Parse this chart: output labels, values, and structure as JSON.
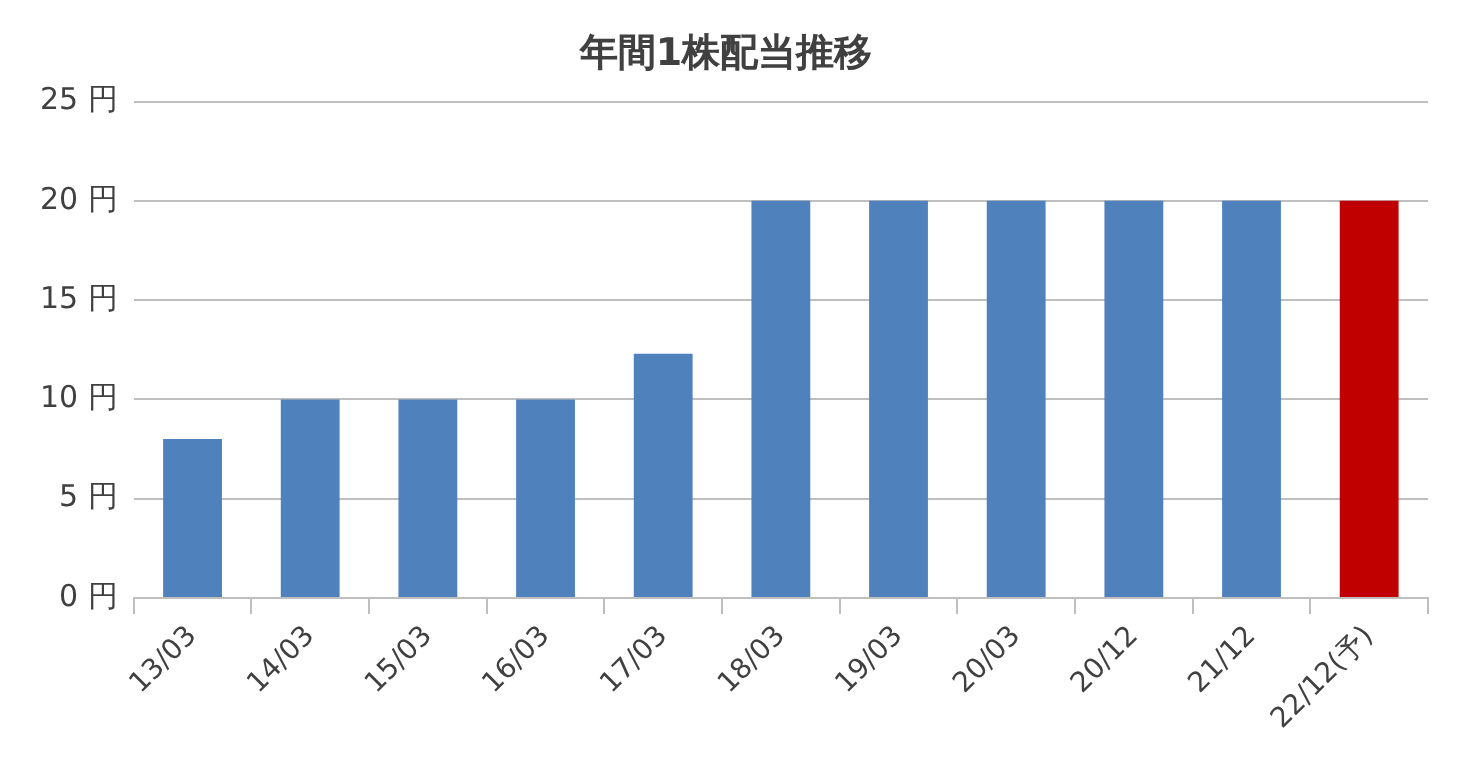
{
  "chart_data": {
    "type": "bar",
    "title": "年間1株配当推移",
    "categories": [
      "13/03",
      "14/03",
      "15/03",
      "16/03",
      "17/03",
      "18/03",
      "19/03",
      "20/03",
      "20/12",
      "21/12",
      "22/12(予)"
    ],
    "values": [
      8,
      10,
      10,
      10,
      12.3,
      20,
      20,
      20,
      20,
      20,
      20
    ],
    "colors": [
      "#4f81bd",
      "#4f81bd",
      "#4f81bd",
      "#4f81bd",
      "#4f81bd",
      "#4f81bd",
      "#4f81bd",
      "#4f81bd",
      "#4f81bd",
      "#4f81bd",
      "#c00000"
    ],
    "ylim": [
      0,
      25
    ],
    "yticks": [
      {
        "value": 0,
        "label": "0 円"
      },
      {
        "value": 5,
        "label": "5 円"
      },
      {
        "value": 10,
        "label": "10 円"
      },
      {
        "value": 15,
        "label": "15 円"
      },
      {
        "value": 20,
        "label": "20 円"
      },
      {
        "value": 25,
        "label": "25 円"
      }
    ],
    "grid": "y"
  }
}
